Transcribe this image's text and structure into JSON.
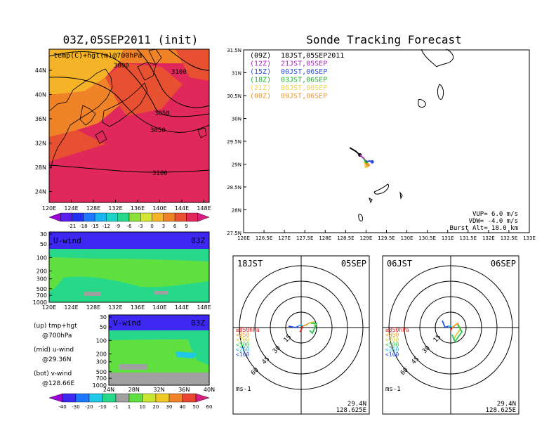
{
  "header": {
    "left_title": "03Z,05SEP2011 (init)",
    "right_title": "Sonde Tracking Forecast"
  },
  "map_panel": {
    "title": "temp(C)+hgt(m)@700hPa",
    "lat_labels": [
      "44N",
      "40N",
      "36N",
      "32N",
      "28N",
      "24N"
    ],
    "lon_labels": [
      "120E",
      "124E",
      "128E",
      "132E",
      "136E",
      "140E",
      "144E",
      "148E"
    ],
    "contour_labels": [
      "3000",
      "3100",
      "3050",
      "3050",
      "3100"
    ],
    "colorbar_labels": [
      "-21",
      "-18",
      "-15",
      "-12",
      "-9",
      "-6",
      "-3",
      "0",
      "3",
      "6",
      "9"
    ],
    "colors": [
      "#9b00d8",
      "#5a1ef0",
      "#2232f5",
      "#1e78ff",
      "#1cb4f0",
      "#1ed2c8",
      "#27d88a",
      "#8be03c",
      "#d2e632",
      "#f5b428",
      "#f08228",
      "#e85032",
      "#e0285a",
      "#d81e82"
    ]
  },
  "uwind_panel": {
    "title": "U-wind",
    "time": "03Z",
    "p_labels": [
      "30",
      "50",
      "100",
      "200",
      "300",
      "500",
      "700",
      "1000"
    ],
    "lon_labels": [
      "120E",
      "124E",
      "128E",
      "132E",
      "136E",
      "140E",
      "144E",
      "148E"
    ]
  },
  "vwind_panel": {
    "title": "V-wind",
    "time": "03Z",
    "p_labels": [
      "30",
      "50",
      "100",
      "200",
      "300",
      "500",
      "700",
      "1000"
    ],
    "lat_labels": [
      "24N",
      "28N",
      "32N",
      "36N",
      "40N"
    ],
    "colorbar_labels": [
      "-40",
      "-30",
      "-20",
      "-10",
      "-1",
      "1",
      "10",
      "20",
      "30",
      "40",
      "50",
      "60"
    ],
    "colors": [
      "#9b00d8",
      "#3c28f0",
      "#1e78ff",
      "#1ec8e6",
      "#27d88a",
      "#a0a0a0",
      "#60e040",
      "#c8e632",
      "#f0c828",
      "#f08228",
      "#e84632",
      "#d81e82"
    ]
  },
  "legend_text": {
    "up_label": "(up) tmp+hgt",
    "up_value": "@700hPa",
    "mid_label": "(mid) u-wind",
    "mid_value": "@29.36N",
    "bot_label": "(bot) v-wind",
    "bot_value": "@128.66E"
  },
  "track_panel": {
    "lat_labels": [
      "31.5N",
      "31N",
      "30.5N",
      "30N",
      "29.5N",
      "29N",
      "28.5N",
      "28N",
      "27.5N"
    ],
    "lon_labels": [
      "126E",
      "126.5E",
      "127E",
      "127.5E",
      "128E",
      "128.5E",
      "129E",
      "129.5E",
      "130E",
      "130.5E",
      "131E",
      "131.5E",
      "132E",
      "132.5E",
      "133E"
    ],
    "legend": [
      {
        "code": "(09Z)",
        "text": "18JST,05SEP2011",
        "color": "#000000"
      },
      {
        "code": "(12Z)",
        "text": "21JST,05SEP",
        "color": "#b428c8"
      },
      {
        "code": "(15Z)",
        "text": "00JST,06SEP",
        "color": "#2850e6"
      },
      {
        "code": "(18Z)",
        "text": "03JST,06SEP",
        "color": "#1eb428"
      },
      {
        "code": "(21Z)",
        "text": "06JST,06SEP",
        "color": "#f0d250"
      },
      {
        "code": "(00Z)",
        "text": "09JST,06SEP",
        "color": "#f09628"
      }
    ],
    "vup": "VUP= 6.0 m/s",
    "vdw": "VDW= -4.0 m/s",
    "burst": "Burst Alt= 18.0 km"
  },
  "hodo_left": {
    "time": "18JST",
    "date": "05SEP",
    "levels": [
      "≥850hPa",
      "<850",
      "<700",
      "<500",
      "<250",
      "<100"
    ],
    "level_colors": [
      "#e61e1e",
      "#f09628",
      "#d2c832",
      "#28c850",
      "#1eb4f0",
      "#2850e6"
    ],
    "ring_labels": [
      "15",
      "30",
      "45",
      "60"
    ],
    "units": "ms-1",
    "lat": "29.4N",
    "lon": "128.625E"
  },
  "hodo_right": {
    "time": "06JST",
    "date": "06SEP",
    "levels": [
      "≥850hPa",
      "<850",
      "<700",
      "<500",
      "<250",
      "<100"
    ],
    "level_colors": [
      "#e61e1e",
      "#f09628",
      "#d2c832",
      "#28c850",
      "#1eb4f0",
      "#2850e6"
    ],
    "ring_labels": [
      "15",
      "30",
      "45",
      "60"
    ],
    "units": "ms-1",
    "lat": "29.4N",
    "lon": "128.625E"
  },
  "chart_data": {
    "type": "line",
    "title": "Sonde Tracking Forecast",
    "xlim": [
      126,
      133
    ],
    "ylim": [
      27.5,
      31.5
    ],
    "series": [
      {
        "name": "(09Z) 18JST,05SEP2011",
        "points": [
          [
            128.6,
            29.36
          ],
          [
            128.75,
            29.28
          ],
          [
            128.85,
            29.2
          ]
        ]
      },
      {
        "name": "(12Z) 21JST,05SEP",
        "points": [
          [
            128.85,
            29.2
          ],
          [
            128.95,
            29.12
          ],
          [
            129.0,
            29.05
          ]
        ]
      },
      {
        "name": "(15Z) 00JST,06SEP",
        "points": [
          [
            129.0,
            29.05
          ],
          [
            129.1,
            29.07
          ],
          [
            129.15,
            29.05
          ]
        ]
      },
      {
        "name": "(18Z) 03JST,06SEP",
        "points": [
          [
            128.95,
            29.12
          ],
          [
            129.0,
            29.02
          ]
        ]
      },
      {
        "name": "(21Z) 06JST,06SEP",
        "points": [
          [
            128.95,
            29.05
          ],
          [
            129.0,
            28.95
          ]
        ]
      },
      {
        "name": "(00Z) 09JST,06SEP",
        "points": [
          [
            128.98,
            29.02
          ],
          [
            129.05,
            28.98
          ]
        ]
      }
    ]
  }
}
